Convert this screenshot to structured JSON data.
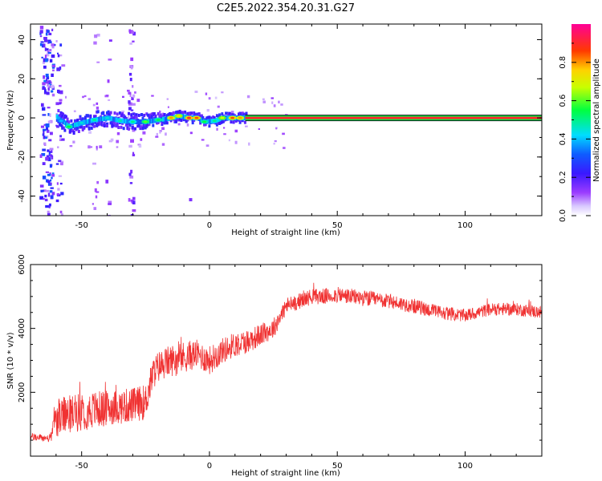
{
  "chart_data": [
    {
      "type": "heatmap",
      "title": "C2E5.2022.354.20.31.G27",
      "xlabel": "Height of straight line (km)",
      "ylabel": "Frequency (Hz)",
      "xlim": [
        -70,
        130
      ],
      "ylim": [
        -50,
        48
      ],
      "x_ticks": [
        -50,
        0,
        50,
        100
      ],
      "y_ticks": [
        -40,
        -20,
        0,
        20,
        40
      ],
      "colorbar": {
        "label": "Normalized spectral amplitude",
        "range": [
          0.0,
          1.0
        ],
        "ticks": [
          "0.0",
          "0.2",
          "0.4",
          "0.6",
          "0.8"
        ]
      },
      "band": {
        "start_km": 14,
        "end_km": 130,
        "frequency_hz": 0,
        "amplitude": 0.9
      },
      "ridge": [
        {
          "x": -58,
          "f": -1.5,
          "a": 0.4
        },
        {
          "x": -55,
          "f": -4.5,
          "a": 0.55
        },
        {
          "x": -50,
          "f": -2.5,
          "a": 0.45
        },
        {
          "x": -45,
          "f": -1.0,
          "a": 0.5
        },
        {
          "x": -40,
          "f": 0.0,
          "a": 0.45
        },
        {
          "x": -35,
          "f": -1.5,
          "a": 0.48
        },
        {
          "x": -30,
          "f": -2.0,
          "a": 0.5
        },
        {
          "x": -25,
          "f": -2.0,
          "a": 0.6
        },
        {
          "x": -20,
          "f": -1.0,
          "a": 0.55
        },
        {
          "x": -15,
          "f": 0.0,
          "a": 0.8
        },
        {
          "x": -12,
          "f": 1.0,
          "a": 0.75
        },
        {
          "x": -8,
          "f": 0.0,
          "a": 0.9
        },
        {
          "x": -5,
          "f": 0.0,
          "a": 0.85
        },
        {
          "x": -2,
          "f": -2.0,
          "a": 0.55
        },
        {
          "x": 2,
          "f": -1.5,
          "a": 0.5
        },
        {
          "x": 5,
          "f": 0.0,
          "a": 0.7
        },
        {
          "x": 9,
          "f": 0.0,
          "a": 0.85
        },
        {
          "x": 12,
          "f": 0.0,
          "a": 0.8
        }
      ]
    },
    {
      "type": "line",
      "xlabel": "Height of straight line (km)",
      "ylabel": "SNR (10 * v/v)",
      "xlim": [
        -70,
        130
      ],
      "ylim": [
        0,
        6000
      ],
      "x_ticks": [
        -50,
        0,
        50,
        100
      ],
      "y_ticks": [
        2000,
        4000,
        6000
      ],
      "color": "#f03232",
      "series": [
        {
          "name": "SNR",
          "x": [
            -70,
            -62,
            -60,
            -55,
            -50,
            -45,
            -40,
            -35,
            -30,
            -25,
            -22,
            -20,
            -15,
            -10,
            -5,
            0,
            5,
            10,
            15,
            20,
            25,
            30,
            35,
            40,
            45,
            50,
            55,
            60,
            65,
            70,
            80,
            90,
            100,
            110,
            120,
            130
          ],
          "y": [
            600,
            550,
            1200,
            1300,
            1400,
            1450,
            1500,
            1550,
            1600,
            1700,
            2600,
            2800,
            3000,
            3100,
            3200,
            3000,
            3300,
            3500,
            3600,
            3800,
            4000,
            4700,
            4850,
            5000,
            5000,
            5050,
            5000,
            4950,
            4900,
            4850,
            4700,
            4500,
            4400,
            4600,
            4600,
            4500
          ],
          "noise": [
            120,
            120,
            600,
            600,
            600,
            600,
            550,
            550,
            550,
            550,
            500,
            500,
            500,
            500,
            450,
            450,
            400,
            400,
            380,
            350,
            320,
            280,
            250,
            250,
            250,
            250,
            250,
            250,
            250,
            230,
            230,
            220,
            200,
            200,
            200,
            200
          ]
        }
      ]
    }
  ]
}
